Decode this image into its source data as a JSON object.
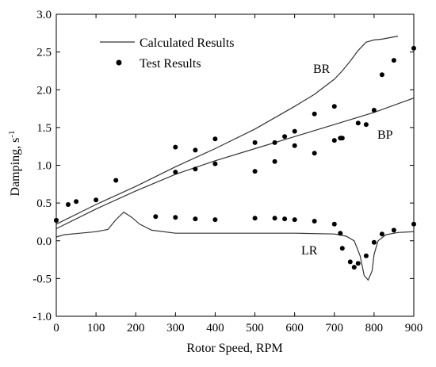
{
  "chart_data": {
    "type": "line",
    "xlabel": "Rotor Speed, RPM",
    "ylabel": "Damping, s",
    "ylabel_superscript": "-1",
    "xlim": [
      0,
      900
    ],
    "ylim": [
      -1.0,
      3.0
    ],
    "xticks": [
      0,
      100,
      200,
      300,
      400,
      500,
      600,
      700,
      800,
      900
    ],
    "xtick_labels": [
      "0",
      "100",
      "200",
      "300",
      "400",
      "500",
      "600",
      "700",
      "800",
      "900"
    ],
    "yticks": [
      -1.0,
      -0.5,
      0.0,
      0.5,
      1.0,
      1.5,
      2.0,
      2.5,
      3.0
    ],
    "ytick_labels": [
      "-1.0",
      "-0.5",
      "0.0",
      "0.5",
      "1.0",
      "1.5",
      "2.0",
      "2.5",
      "3.0"
    ],
    "grid": false,
    "legend_position": "top-left",
    "legend": [
      {
        "label": "Calculated Results",
        "style": "line"
      },
      {
        "label": "Test Results",
        "style": "marker"
      }
    ],
    "annotations": [
      {
        "text": "BR",
        "x": 650,
        "y": 2.27
      },
      {
        "text": "BP",
        "x": 840,
        "y": 1.43
      },
      {
        "text": "LR",
        "x": 625,
        "y": -0.22
      }
    ],
    "calculated_series": [
      {
        "name": "BR",
        "x": [
          0,
          100,
          200,
          300,
          400,
          500,
          600,
          650,
          700,
          720,
          740,
          760,
          780,
          800,
          820,
          840,
          860
        ],
        "y": [
          0.22,
          0.48,
          0.72,
          0.98,
          1.22,
          1.48,
          1.78,
          1.94,
          2.14,
          2.25,
          2.38,
          2.52,
          2.63,
          2.66,
          2.67,
          2.69,
          2.71
        ]
      },
      {
        "name": "BP",
        "x": [
          0,
          100,
          200,
          300,
          400,
          500,
          600,
          700,
          800,
          900
        ],
        "y": [
          0.16,
          0.42,
          0.66,
          0.88,
          1.06,
          1.22,
          1.38,
          1.54,
          1.7,
          1.89
        ]
      },
      {
        "name": "LR",
        "x": [
          0,
          20,
          60,
          100,
          130,
          150,
          170,
          190,
          210,
          240,
          300,
          400,
          500,
          600,
          700,
          730,
          750,
          765,
          775,
          785,
          795,
          800,
          810,
          830,
          860,
          900
        ],
        "y": [
          0.05,
          0.08,
          0.1,
          0.12,
          0.15,
          0.28,
          0.38,
          0.31,
          0.22,
          0.14,
          0.1,
          0.1,
          0.1,
          0.1,
          0.09,
          0.06,
          0.0,
          -0.2,
          -0.46,
          -0.52,
          -0.4,
          -0.18,
          0.0,
          0.08,
          0.11,
          0.12
        ]
      }
    ],
    "test_results": {
      "name": "Test Results",
      "x": [
        0,
        30,
        50,
        100,
        150,
        300,
        350,
        400,
        500,
        550,
        575,
        600,
        650,
        700,
        715,
        300,
        350,
        400,
        500,
        550,
        600,
        650,
        700,
        720,
        760,
        780,
        800,
        820,
        850,
        900,
        0,
        250,
        300,
        350,
        400,
        500,
        550,
        575,
        600,
        650,
        700,
        715,
        720,
        740,
        750,
        760,
        780,
        800,
        820,
        850,
        900
      ],
      "y": [
        0.27,
        0.48,
        0.52,
        0.54,
        0.8,
        1.24,
        1.2,
        1.35,
        1.3,
        1.3,
        1.38,
        1.45,
        1.68,
        1.78,
        1.36,
        0.91,
        0.95,
        1.02,
        0.92,
        1.05,
        1.26,
        1.16,
        1.33,
        1.36,
        1.56,
        1.54,
        1.73,
        2.2,
        2.39,
        2.55,
        0.27,
        0.32,
        0.31,
        0.29,
        0.28,
        0.3,
        0.3,
        0.29,
        0.28,
        0.26,
        0.22,
        0.1,
        -0.1,
        -0.28,
        -0.35,
        -0.3,
        -0.2,
        -0.02,
        0.09,
        0.14,
        0.22
      ]
    }
  }
}
